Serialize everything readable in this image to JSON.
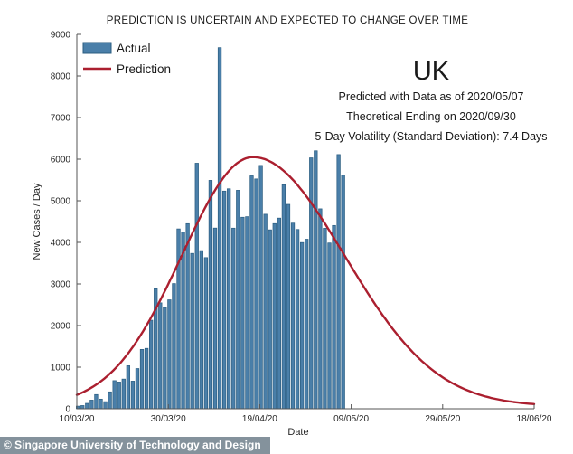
{
  "figure": {
    "title": "PREDICTION IS UNCERTAIN AND EXPECTED TO CHANGE OVER TIME",
    "country_label": "UK",
    "annotation_lines": [
      "Predicted with Data as of 2020/05/07",
      "Theoretical Ending on 2020/09/30",
      "5-Day Volatility (Standard Deviation): 7.4 Days"
    ],
    "footer_text": "© Singapore University of Technology and Design"
  },
  "legend": {
    "actual_label": "Actual",
    "prediction_label": "Prediction"
  },
  "colors": {
    "bar_fill": "#4a7fa9",
    "bar_edge": "#2b5d80",
    "prediction_line": "#ab1f2f",
    "axis": "#555555",
    "footer_bg": "#84929c",
    "footer_text": "#ffffff"
  },
  "chart_data": {
    "type": "bar",
    "title": "PREDICTION IS UNCERTAIN AND EXPECTED TO CHANGE OVER TIME",
    "xlabel": "Date",
    "ylabel": "New Cases / Day",
    "ylim": [
      0,
      9000
    ],
    "yticks": [
      0,
      1000,
      2000,
      3000,
      4000,
      5000,
      6000,
      7000,
      8000,
      9000
    ],
    "xticks": [
      {
        "day": 0,
        "label": "10/03/20"
      },
      {
        "day": 20,
        "label": "30/03/20"
      },
      {
        "day": 40,
        "label": "19/04/20"
      },
      {
        "day": 60,
        "label": "09/05/20"
      },
      {
        "day": 80,
        "label": "29/05/20"
      },
      {
        "day": 100,
        "label": "18/06/20"
      }
    ],
    "x_day_range": [
      0,
      100
    ],
    "grid": false,
    "legend_position": "upper-left",
    "series": [
      {
        "name": "Actual",
        "type": "bar",
        "start_date": "2020-03-10",
        "end_date": "2020-05-07",
        "values": [
          63,
          77,
          130,
          208,
          342,
          232,
          171,
          407,
          676,
          643,
          714,
          1035,
          665,
          967,
          1427,
          1452,
          2129,
          2885,
          2546,
          2433,
          2619,
          3009,
          4324,
          4244,
          4450,
          3735,
          5903,
          3802,
          3634,
          5491,
          4344,
          8681,
          5233,
          5288,
          4342,
          5252,
          4603,
          4617,
          5599,
          5525,
          5850,
          4676,
          4301,
          4451,
          4583,
          5386,
          4913,
          4463,
          4310,
          3996,
          4076,
          6032,
          6201,
          4806,
          4339,
          3985,
          4406,
          6111,
          5614
        ]
      },
      {
        "name": "Prediction",
        "type": "line",
        "model": "asymmetric-gaussian",
        "baseline": 60,
        "amplitude": 5990,
        "peak_value": 6050,
        "peak_day": 38.5,
        "peak_date": "2020-04-17",
        "sigma_left_days": 15.5,
        "sigma_right_days": 20,
        "curve_day_range": [
          0,
          100
        ]
      }
    ]
  }
}
